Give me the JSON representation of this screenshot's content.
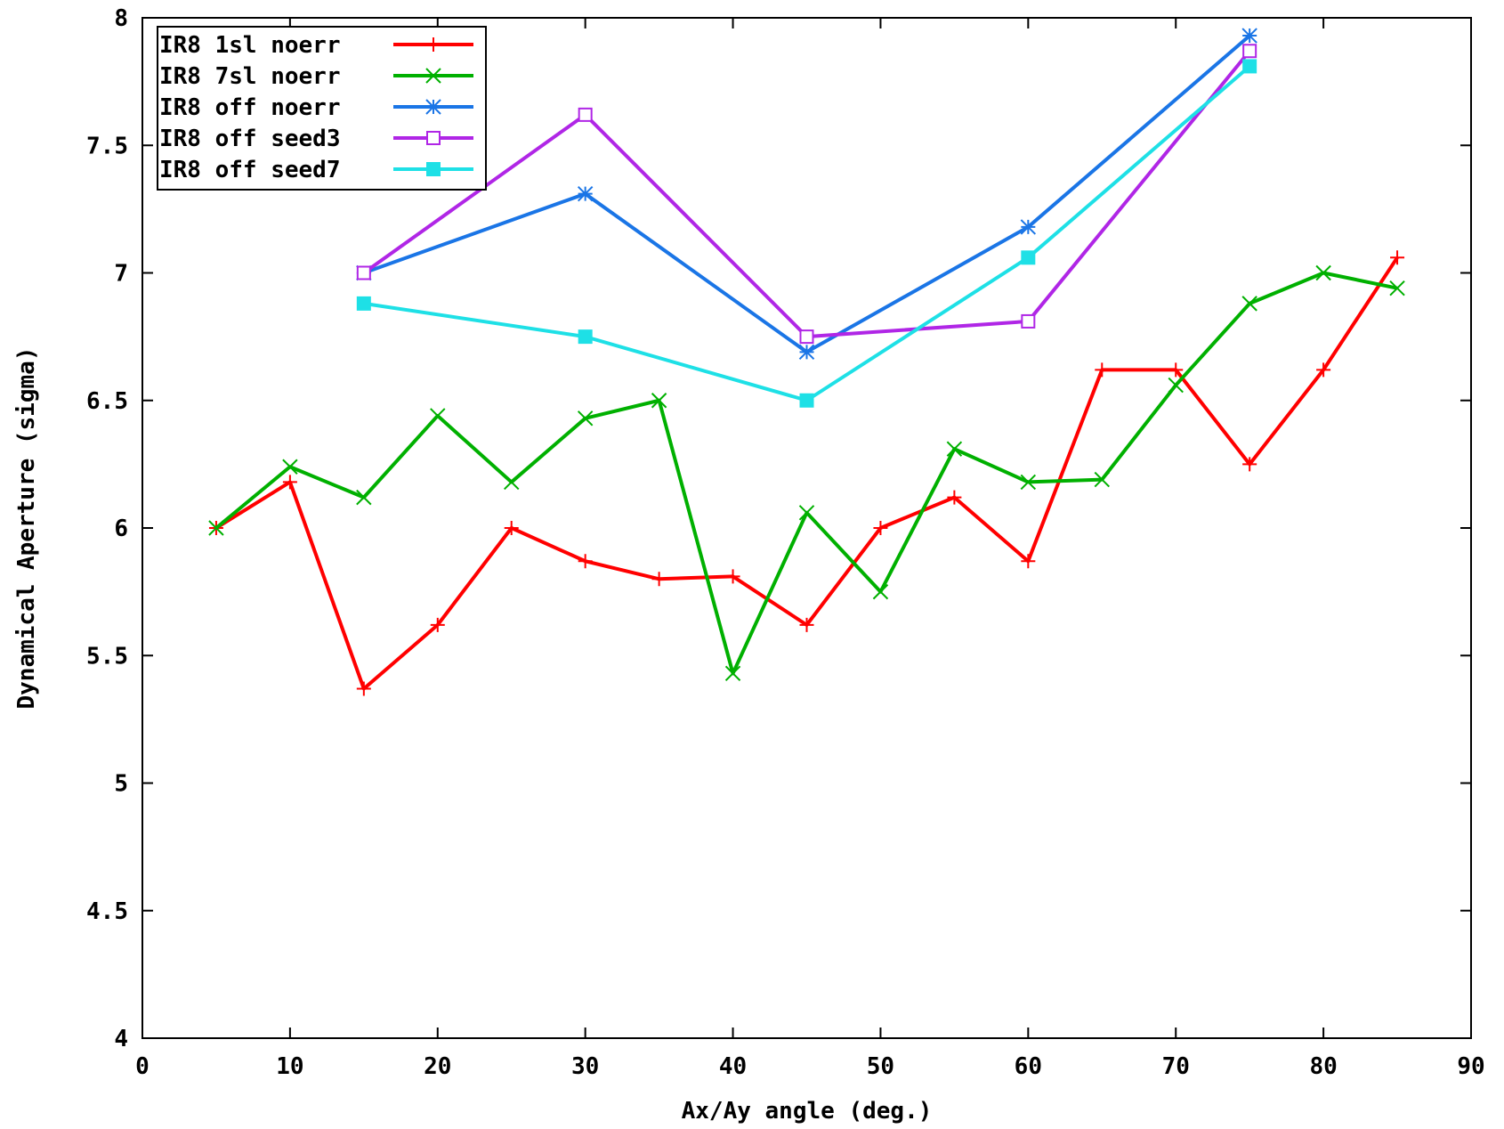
{
  "chart_data": {
    "type": "line",
    "title": "",
    "xlabel": "Ax/Ay angle (deg.)",
    "ylabel": "Dynamical Aperture (sigma)",
    "xlim": [
      0,
      90
    ],
    "ylim": [
      4,
      8
    ],
    "xticks": [
      0,
      10,
      20,
      30,
      40,
      50,
      60,
      70,
      80,
      90
    ],
    "xtick_labels": [
      "0",
      "10",
      "20",
      "30",
      "40",
      "50",
      "60",
      "70",
      "80",
      "90"
    ],
    "yticks": [
      4,
      4.5,
      5,
      5.5,
      6,
      6.5,
      7,
      7.5,
      8
    ],
    "ytick_labels": [
      "4",
      "4.5",
      "5",
      "5.5",
      "6",
      "6.5",
      "7",
      "7.5",
      "8"
    ],
    "grid": false,
    "legend_position": "top-left",
    "series": [
      {
        "name": "IR8 1sl noerr",
        "color": "#ff0000",
        "marker": "plus",
        "x": [
          5,
          10,
          15,
          20,
          25,
          30,
          35,
          40,
          45,
          50,
          55,
          60,
          65,
          70,
          75,
          80,
          85
        ],
        "y": [
          6.0,
          6.18,
          5.37,
          5.62,
          6.0,
          5.87,
          5.8,
          5.81,
          5.62,
          6.0,
          6.12,
          5.87,
          6.62,
          6.62,
          6.25,
          6.62,
          7.06
        ]
      },
      {
        "name": "IR8 7sl noerr",
        "color": "#00b000",
        "marker": "cross",
        "x": [
          5,
          10,
          15,
          20,
          25,
          30,
          35,
          40,
          45,
          50,
          55,
          60,
          65,
          70,
          75,
          80,
          85
        ],
        "y": [
          6.0,
          6.24,
          6.12,
          6.44,
          6.18,
          6.43,
          6.5,
          5.43,
          6.06,
          5.75,
          6.31,
          6.18,
          6.19,
          6.56,
          6.88,
          7.0,
          6.94
        ]
      },
      {
        "name": "IR8 off noerr",
        "color": "#1a75e6",
        "marker": "star",
        "x": [
          15,
          30,
          45,
          60,
          75
        ],
        "y": [
          7.0,
          7.31,
          6.69,
          7.18,
          7.93
        ]
      },
      {
        "name": "IR8 off seed3",
        "color": "#b026e6",
        "marker": "open-square",
        "x": [
          15,
          30,
          45,
          60,
          75
        ],
        "y": [
          7.0,
          7.62,
          6.75,
          6.81,
          7.87
        ]
      },
      {
        "name": "IR8 off seed7",
        "color": "#1ee0e6",
        "marker": "filled-square",
        "x": [
          15,
          30,
          45,
          60,
          75
        ],
        "y": [
          6.88,
          6.75,
          6.5,
          7.06,
          7.81
        ]
      }
    ]
  }
}
